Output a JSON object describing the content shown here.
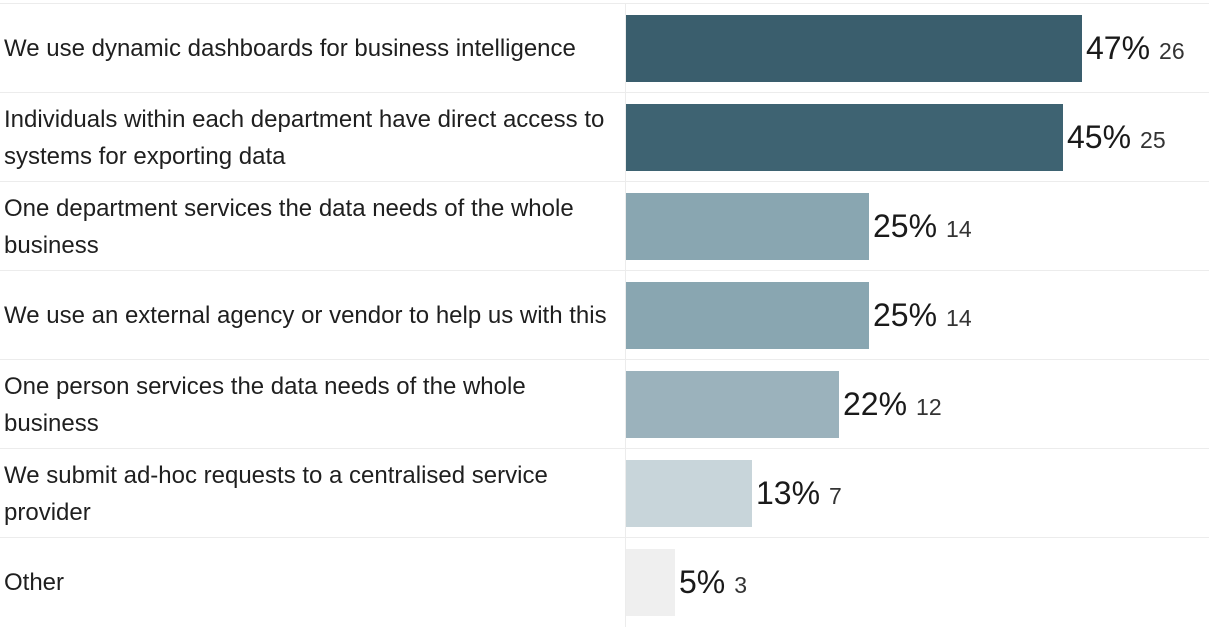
{
  "chart_data": {
    "type": "bar",
    "orientation": "horizontal",
    "categories": [
      "We use dynamic dashboards for business intelligence",
      "Individuals within each department have direct access to systems for exporting data",
      "One department services the data needs of the whole business",
      "We use an external agency or vendor to help us with this",
      "One person services the data needs of the whole business",
      "We submit ad-hoc requests to a centralised service provider",
      "Other"
    ],
    "percent_labels": [
      "47%",
      "45%",
      "25%",
      "25%",
      "22%",
      "13%",
      "5%"
    ],
    "values": [
      47,
      45,
      25,
      25,
      22,
      13,
      5
    ],
    "counts": [
      26,
      25,
      14,
      14,
      12,
      7,
      3
    ],
    "xlim": [
      0,
      100
    ],
    "colors": [
      "#3a5e6d",
      "#3e6372",
      "#89a6b1",
      "#89a6b1",
      "#9bb2bc",
      "#c8d5da",
      "#efefef"
    ],
    "grid": false,
    "legend": "none"
  }
}
